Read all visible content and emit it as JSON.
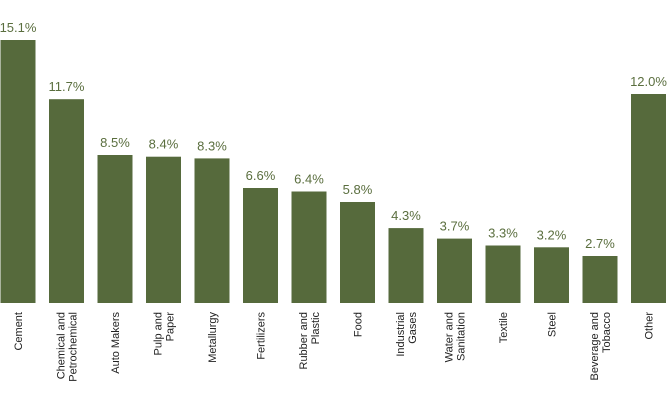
{
  "chart_data": {
    "type": "bar",
    "categories": [
      [
        "Cement"
      ],
      [
        "Chemical and",
        "Petrochemical"
      ],
      [
        "Auto Makers"
      ],
      [
        "Pulp and",
        "Paper"
      ],
      [
        "Metallurgy"
      ],
      [
        "Fertilizers"
      ],
      [
        "Rubber and",
        "Plastic"
      ],
      [
        "Food"
      ],
      [
        "Industrial",
        "Gases"
      ],
      [
        "Water and",
        "Sanitation"
      ],
      [
        "Textile"
      ],
      [
        "Steel"
      ],
      [
        "Beverage and",
        "Tobacco"
      ],
      [
        "Other"
      ]
    ],
    "values": [
      15.1,
      11.7,
      8.5,
      8.4,
      8.3,
      6.6,
      6.4,
      5.8,
      4.3,
      3.7,
      3.3,
      3.2,
      2.7,
      12.0
    ],
    "value_labels": [
      "15.1%",
      "11.7%",
      "8.5%",
      "8.4%",
      "8.3%",
      "6.6%",
      "6.4%",
      "5.8%",
      "4.3%",
      "3.7%",
      "3.3%",
      "3.2%",
      "2.7%",
      "12.0%"
    ],
    "unit": "%",
    "ylim": [
      0,
      15.1
    ],
    "grid": false,
    "colors": {
      "bar": "#566a3c",
      "label": "#5a6e3e",
      "tick": "#222222"
    }
  }
}
